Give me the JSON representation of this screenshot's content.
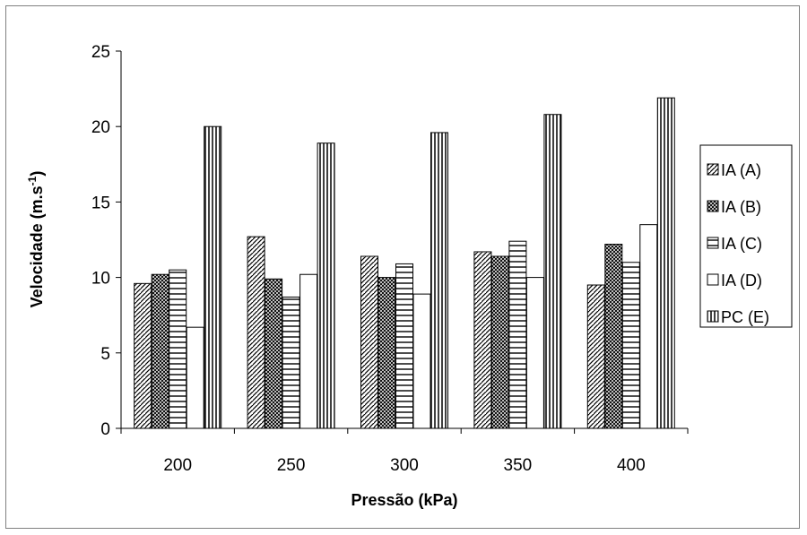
{
  "chart_data": {
    "type": "bar",
    "xlabel": "Pressão (kPa)",
    "ylabel_main": "Velocidade (m.s",
    "ylabel_sup": "-1",
    "ylabel_close": ")",
    "categories": [
      "200",
      "250",
      "300",
      "350",
      "400"
    ],
    "ylim": [
      0,
      25
    ],
    "yticks": [
      0,
      5,
      10,
      15,
      20,
      25
    ],
    "grid": false,
    "legend_position": "right",
    "series": [
      {
        "name": "IA (A)",
        "pattern": "diag-hatch",
        "values": [
          9.6,
          12.7,
          11.4,
          11.7,
          9.5
        ]
      },
      {
        "name": "IA (B)",
        "pattern": "cross-hatch",
        "values": [
          10.2,
          9.9,
          10.0,
          11.4,
          12.2
        ]
      },
      {
        "name": "IA (C)",
        "pattern": "horizontal-lines",
        "values": [
          10.5,
          8.7,
          10.9,
          12.4,
          11.0
        ]
      },
      {
        "name": "IA (D)",
        "pattern": "solid-white",
        "values": [
          6.7,
          10.2,
          8.9,
          10.0,
          13.5
        ]
      },
      {
        "name": "PC (E)",
        "pattern": "vertical-lines",
        "values": [
          20.0,
          18.9,
          19.6,
          20.8,
          21.9
        ]
      }
    ]
  }
}
